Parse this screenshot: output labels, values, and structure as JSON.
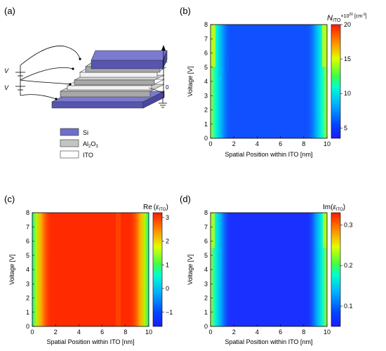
{
  "panels": [
    {
      "label": "(a)"
    },
    {
      "label": "(b)",
      "cbar": {
        "title": "N",
        "title_sub": "ITO",
        "title_suffix": "×10",
        "title_sup": "20",
        "title_unit": "[cm",
        "title_unit_sup": "-3",
        "title_unit_end": "]",
        "ticks": [
          "20",
          "15",
          "10",
          "5"
        ],
        "range": [
          3.5,
          20
        ]
      }
    },
    {
      "label": "(c)",
      "cbar": {
        "title": "Re",
        "title_open": "(",
        "title_eps": "ε",
        "title_sub": "ITO",
        "title_close": ")",
        "ticks": [
          "3",
          "2",
          "1",
          "0",
          "−1"
        ],
        "range": [
          -1.6,
          3.2
        ]
      }
    },
    {
      "label": "(d)",
      "cbar": {
        "title": "Im",
        "title_open": "(",
        "title_eps": "ε",
        "title_sub": "ITO",
        "title_close": ")",
        "ticks": [
          "0.3",
          "0.2",
          "0.1"
        ],
        "range": [
          0.05,
          0.33
        ]
      }
    }
  ],
  "axes": {
    "xlabel": "Spatial Position within ITO [nm]",
    "ylabel": "Voltage [V]",
    "xticks": [
      "0",
      "2",
      "4",
      "6",
      "8",
      "10"
    ],
    "yticks": [
      "0",
      "1",
      "2",
      "3",
      "4",
      "5",
      "6",
      "7",
      "8"
    ]
  },
  "device": {
    "voltage_label_1": "V",
    "voltage_label_2": "V",
    "axis_origin": "0",
    "legend": [
      {
        "label": "Si",
        "color": "#6f6ec8"
      },
      {
        "label": "Al",
        "sub": "2",
        "mid": "O",
        "sub2": "3",
        "color": "#c4c4c4"
      },
      {
        "label": "ITO",
        "color": "#ffffff"
      }
    ]
  },
  "chart_data": [
    {
      "type": "heatmap",
      "panel": "(b)",
      "xlabel": "Spatial Position within ITO [nm]",
      "ylabel": "Voltage [V]",
      "xlim": [
        0,
        10
      ],
      "ylim": [
        0,
        8
      ],
      "colorbar_range": [
        3.5,
        20
      ],
      "colorbar_ticks": [
        5,
        10,
        15,
        20
      ],
      "description_values": {
        "bulk": 4,
        "edge_max_at_8V": 13
      }
    },
    {
      "type": "heatmap",
      "panel": "(c)",
      "xlabel": "Spatial Position within ITO [nm]",
      "ylabel": "Voltage [V]",
      "xlim": [
        0,
        10
      ],
      "ylim": [
        0,
        8
      ],
      "colorbar_range": [
        -1.6,
        3.2
      ],
      "colorbar_ticks": [
        -1,
        0,
        1,
        2,
        3
      ],
      "description_values": {
        "bulk": 3,
        "edge_min_at_8V": 0
      }
    },
    {
      "type": "heatmap",
      "panel": "(d)",
      "xlabel": "Spatial Position within ITO [nm]",
      "ylabel": "Voltage [V]",
      "xlim": [
        0,
        10
      ],
      "ylim": [
        0,
        8
      ],
      "colorbar_range": [
        0.05,
        0.33
      ],
      "colorbar_ticks": [
        0.1,
        0.2,
        0.3
      ],
      "description_values": {
        "bulk": 0.07,
        "edge_max_at_8V": 0.2
      }
    }
  ]
}
